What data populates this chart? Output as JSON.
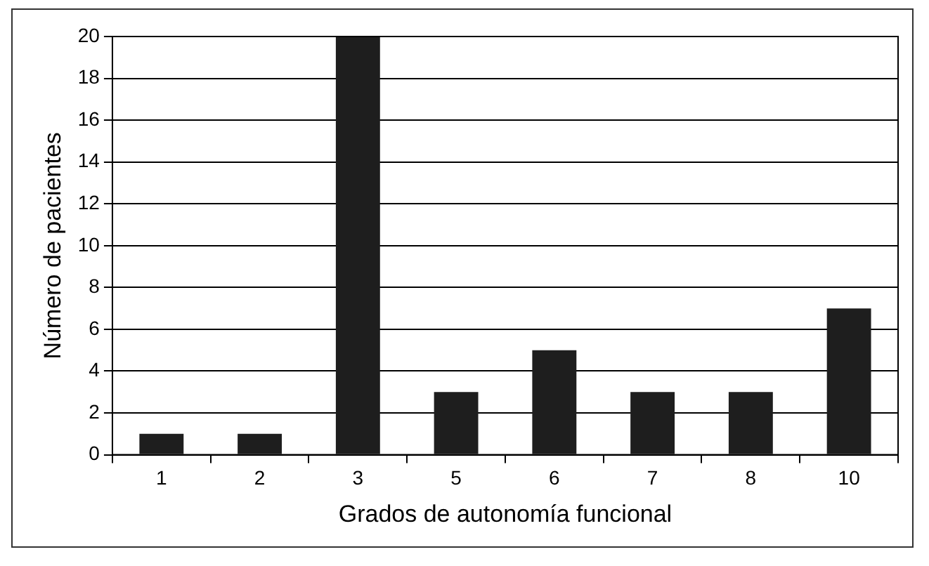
{
  "chart_data": {
    "type": "bar",
    "xlabel": "Grados de autonomía funcional",
    "ylabel": "Número de pacientes",
    "categories": [
      "1",
      "2",
      "3",
      "5",
      "6",
      "7",
      "8",
      "10"
    ],
    "values": [
      1,
      1,
      20,
      3,
      5,
      3,
      3,
      7
    ],
    "color": "#1e1e1e",
    "ylim": [
      0,
      20
    ],
    "yticks": [
      0,
      2,
      4,
      6,
      8,
      10,
      12,
      14,
      16,
      18,
      20
    ],
    "grid": "y",
    "legend": false
  }
}
